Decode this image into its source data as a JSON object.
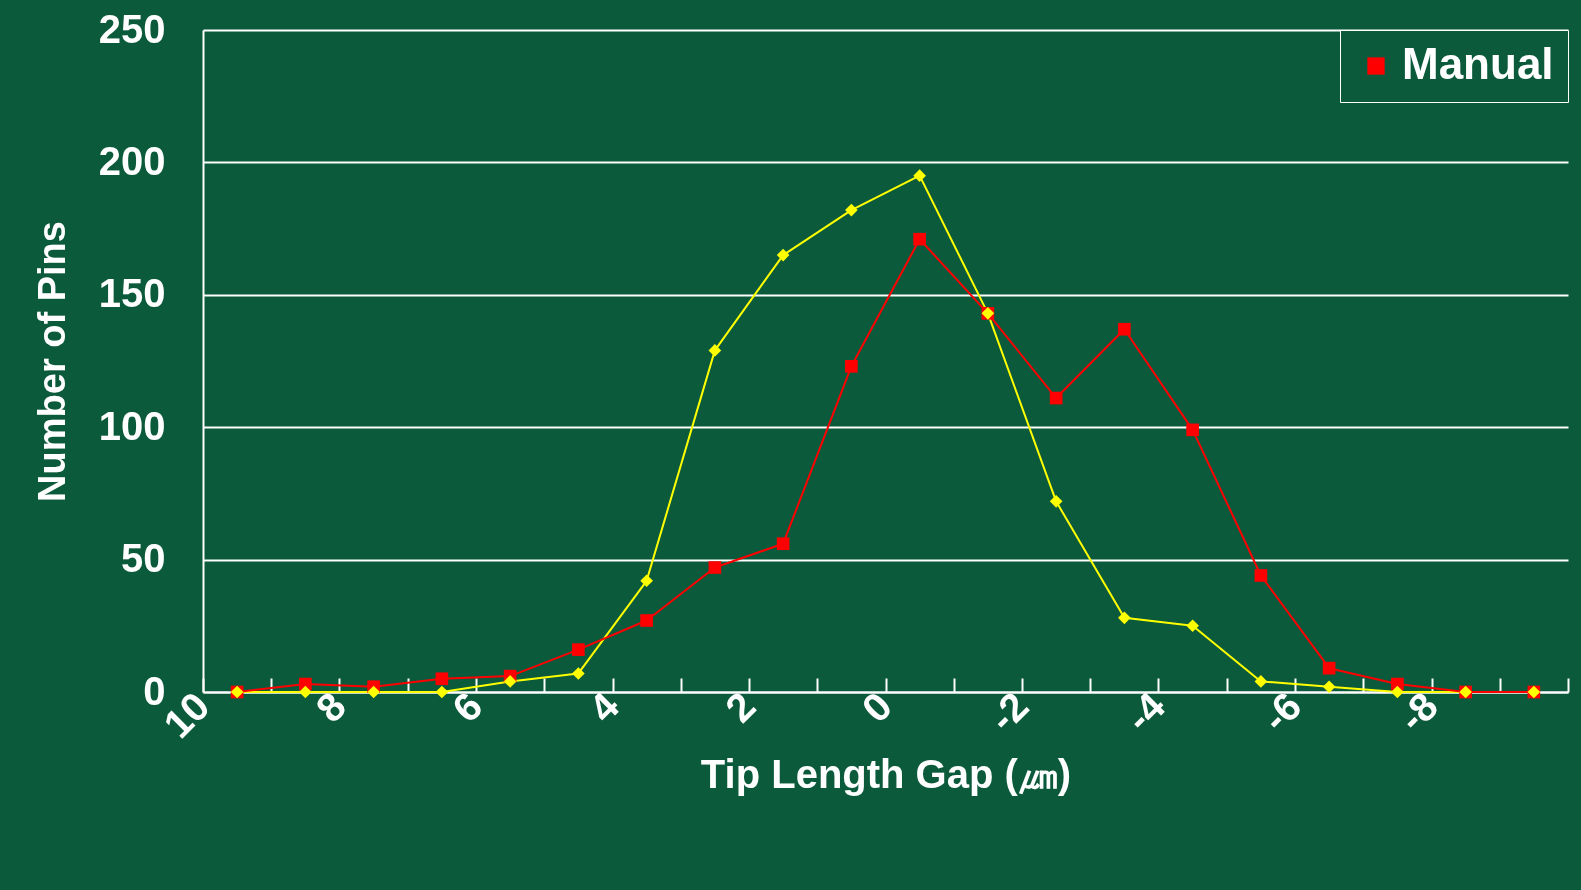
{
  "chart_data": {
    "type": "line",
    "xlabel": "Tip Length Gap (㎛)",
    "ylabel": "Number of Pins",
    "xlim": [
      10,
      -10
    ],
    "xticks": [
      10,
      {
        "value": 9,
        "label": null
      },
      8,
      {
        "value": 7,
        "label": null
      },
      6,
      {
        "value": 5,
        "label": null
      },
      4,
      {
        "value": 3,
        "label": null
      },
      2,
      {
        "value": 1,
        "label": null
      },
      0,
      {
        "value": -1,
        "label": null
      },
      -2,
      {
        "value": -3,
        "label": null
      },
      -4,
      {
        "value": -5,
        "label": null
      },
      -6,
      {
        "value": -7,
        "label": null
      },
      -8,
      {
        "value": -9,
        "label": null
      },
      {
        "value": -10,
        "label": null
      }
    ],
    "ylim": [
      0,
      250
    ],
    "yticks": [
      0,
      50,
      100,
      150,
      200,
      250
    ],
    "x": [
      9.5,
      8.5,
      7.5,
      6.5,
      5.5,
      4.5,
      3.5,
      2.5,
      1.5,
      0.5,
      -0.5,
      -1.5,
      -2.5,
      -3.5,
      -4.5,
      -5.5,
      -6.5,
      -7.5,
      -8.5,
      -9.5
    ],
    "series": [
      {
        "color": "#ffff00",
        "marker": "diamond",
        "values": [
          0,
          0,
          0,
          0,
          4,
          7,
          42,
          129,
          165,
          182,
          195,
          143,
          72,
          28,
          25,
          4,
          2,
          0,
          0,
          0
        ]
      },
      {
        "name": "Manual",
        "color": "#ff0000",
        "marker": "square",
        "values": [
          0,
          3,
          2,
          5,
          6,
          16,
          27,
          47,
          56,
          123,
          171,
          143,
          111,
          137,
          99,
          44,
          9,
          3,
          0,
          0
        ]
      }
    ],
    "grid": "y",
    "legend": "top right"
  }
}
